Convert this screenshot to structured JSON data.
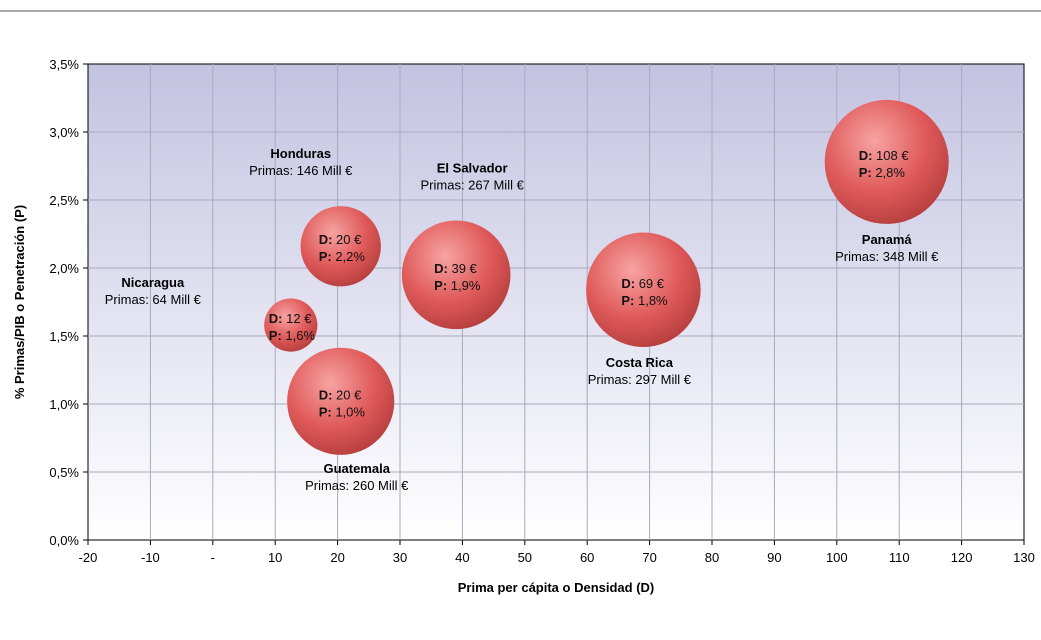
{
  "chart_data": {
    "type": "scatter",
    "subtype": "bubble",
    "title": "",
    "xlabel": "Prima per cápita o Densidad (D)",
    "ylabel": "% Primas/PIB o Penetración (P)",
    "xlim": [
      -20,
      130
    ],
    "ylim": [
      0,
      3.5
    ],
    "x_tick_labels": [
      "-20",
      "-10",
      "-",
      "10",
      "20",
      "30",
      "40",
      "50",
      "60",
      "70",
      "80",
      "90",
      "100",
      "110",
      "120",
      "130"
    ],
    "y_tick_labels": [
      "0,0%",
      "0,5%",
      "1,0%",
      "1,5%",
      "2,0%",
      "2,5%",
      "3,0%",
      "3,5%"
    ],
    "grid": true,
    "legend": "none",
    "colors": {
      "bubble": "#e05a5a",
      "bubble_light": "#f7a3a3",
      "bubble_dark": "#b03a3a",
      "plot_top": "#c3c3e2",
      "plot_bottom": "#ffffff",
      "grid": "#a9a9bd"
    },
    "points": [
      {
        "name": "Panamá",
        "primas": "Primas: 348 Mill €",
        "x": 108,
        "y": 2.78,
        "size": 348,
        "d_label": "D:",
        "d_value": "108 €",
        "p_label": "P:",
        "p_value": "2,8%"
      },
      {
        "name": "Costa Rica",
        "primas": "Primas: 297 Mill €",
        "x": 69,
        "y": 1.84,
        "size": 297,
        "d_label": "D:",
        "d_value": "69 €",
        "p_label": "P:",
        "p_value": "1,8%"
      },
      {
        "name": "El Salvador",
        "primas": "Primas: 267 Mill €",
        "x": 39,
        "y": 1.95,
        "size": 267,
        "d_label": "D:",
        "d_value": "39 €",
        "p_label": "P:",
        "p_value": "1,9%"
      },
      {
        "name": "Guatemala",
        "primas": "Primas: 260 Mill €",
        "x": 20.5,
        "y": 1.02,
        "size": 260,
        "d_label": "D:",
        "d_value": "20 €",
        "p_label": "P:",
        "p_value": "1,0%"
      },
      {
        "name": "Honduras",
        "primas": "Primas: 146 Mill €",
        "x": 20.5,
        "y": 2.16,
        "size": 146,
        "d_label": "D:",
        "d_value": "20 €",
        "p_label": "P:",
        "p_value": "2,2%"
      },
      {
        "name": "Nicaragua",
        "primas": "Primas: 64 Mill €",
        "x": 12.5,
        "y": 1.58,
        "size": 64,
        "d_label": "D:",
        "d_value": "12 €",
        "p_label": "P:",
        "p_value": "1,6%"
      }
    ]
  }
}
